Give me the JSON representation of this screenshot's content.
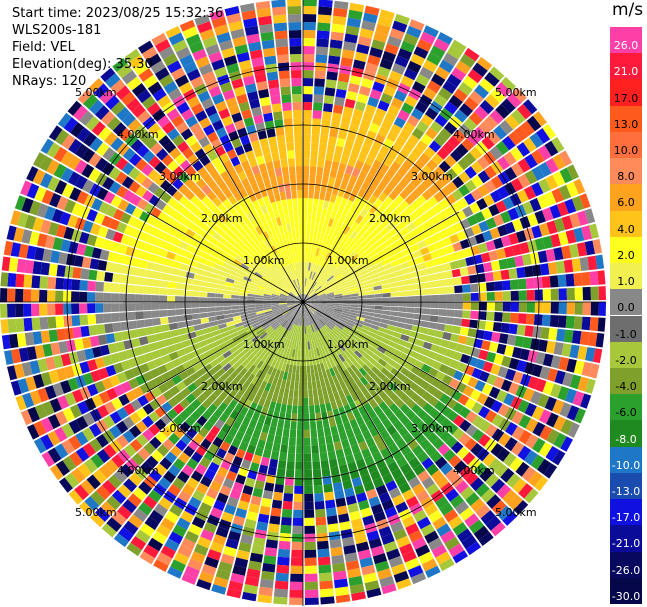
{
  "info": {
    "start_time": "Start time: 2023/08/25 15:32:36",
    "station": "WLS200s-181",
    "field": "Field: VEL",
    "elevation": "Elevation(deg): 35.30",
    "nrays": "NRays: 120"
  },
  "colorbar": {
    "unit": "m/s",
    "labels": [
      "26.0",
      "21.0",
      "17.0",
      "13.0",
      "10.0",
      "8.0",
      "6.0",
      "4.0",
      "2.0",
      "1.0",
      "0.0",
      "-1.0",
      "-2.0",
      "-4.0",
      "-6.0",
      "-8.0",
      "-10.0",
      "-13.0",
      "-17.0",
      "-21.0",
      "-26.0",
      "-30.0"
    ],
    "colors": [
      "#ff3fa8",
      "#ff1a3c",
      "#ff2020",
      "#ff5a1e",
      "#ff6f3d",
      "#ff8a5a",
      "#ffa21e",
      "#ffc31a",
      "#ffff1e",
      "#f0f050",
      "#888888",
      "#6e6e6e",
      "#a6c83a",
      "#7fa02a",
      "#2ca02c",
      "#1f8a1f",
      "#1f77c8",
      "#1a4cb0",
      "#1010e0",
      "#0b0b9a",
      "#08085e",
      "#06064a"
    ]
  },
  "range_rings": {
    "labels": [
      "1.00km",
      "2.00km",
      "3.00km",
      "4.00km",
      "5.00km"
    ]
  }
}
